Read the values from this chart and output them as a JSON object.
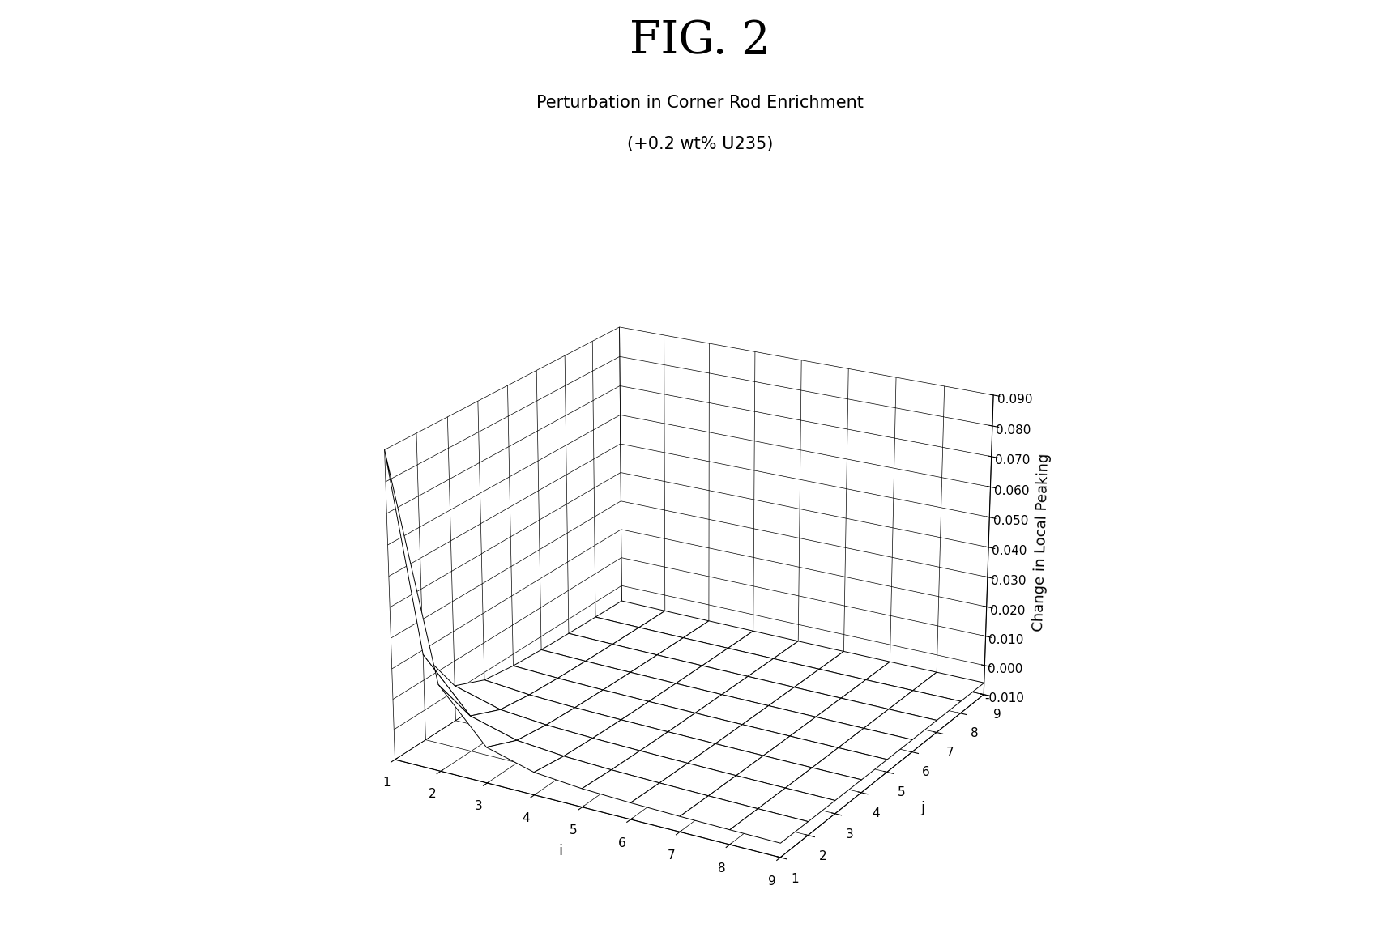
{
  "title_main": "FIG. 2",
  "title_sub1": "Perturbation in Corner Rod Enrichment",
  "title_sub2": "(+0.2 wt% U235)",
  "xlabel": "i",
  "ylabel": "j",
  "zlabel": "Change in Local Peaking",
  "i_range": [
    1,
    9
  ],
  "j_range": [
    1,
    9
  ],
  "zlim": [
    -0.01,
    0.09
  ],
  "zticks": [
    -0.01,
    0.0,
    0.01,
    0.02,
    0.03,
    0.04,
    0.05,
    0.06,
    0.07,
    0.08,
    0.09
  ],
  "surface_color": "white",
  "edge_color": "black",
  "background_color": "white",
  "title_main_fontsize": 40,
  "title_sub_fontsize": 15,
  "axis_label_fontsize": 13,
  "tick_fontsize": 11,
  "elev": 22,
  "azim": -60
}
